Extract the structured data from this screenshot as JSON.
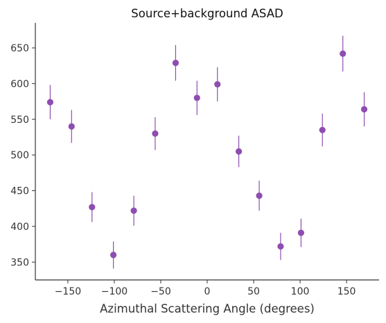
{
  "chart_data": {
    "type": "scatter",
    "title": "Source+background ASAD",
    "xlabel": "Azimuthal Scattering Angle (degrees)",
    "ylabel": "",
    "xlim": [
      -185,
      185
    ],
    "ylim": [
      325,
      685
    ],
    "xticks": [
      -150,
      -100,
      -50,
      0,
      50,
      100,
      150
    ],
    "xtick_labels": [
      "−150",
      "−100",
      "−50",
      "0",
      "50",
      "100",
      "150"
    ],
    "yticks": [
      350,
      400,
      450,
      500,
      550,
      600,
      650
    ],
    "ytick_labels": [
      "350",
      "400",
      "450",
      "500",
      "550",
      "600",
      "650"
    ],
    "grid": false,
    "error_bars": true,
    "marker_color": "#8e4db0",
    "axis_color": "#333333",
    "series": [
      {
        "points": [
          {
            "x": -169,
            "y": 574,
            "err": 24
          },
          {
            "x": -146,
            "y": 540,
            "err": 23
          },
          {
            "x": -124,
            "y": 427,
            "err": 21
          },
          {
            "x": -101,
            "y": 360,
            "err": 19
          },
          {
            "x": -79,
            "y": 422,
            "err": 21
          },
          {
            "x": -56,
            "y": 530,
            "err": 23
          },
          {
            "x": -34,
            "y": 629,
            "err": 25
          },
          {
            "x": -11,
            "y": 580,
            "err": 24
          },
          {
            "x": 11,
            "y": 599,
            "err": 24
          },
          {
            "x": 34,
            "y": 505,
            "err": 22
          },
          {
            "x": 56,
            "y": 443,
            "err": 21
          },
          {
            "x": 79,
            "y": 372,
            "err": 19
          },
          {
            "x": 101,
            "y": 391,
            "err": 20
          },
          {
            "x": 124,
            "y": 535,
            "err": 23
          },
          {
            "x": 146,
            "y": 642,
            "err": 25
          },
          {
            "x": 169,
            "y": 564,
            "err": 24
          }
        ]
      }
    ]
  }
}
